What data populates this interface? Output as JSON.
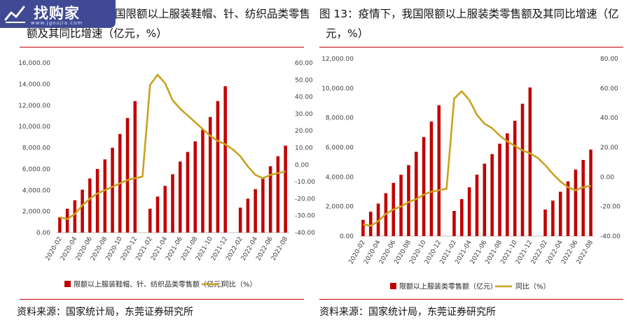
{
  "watermark": {
    "brand": "找购家",
    "sub": "www.jgoujia.com"
  },
  "left_title": {
    "line1": "国限额以上服装鞋帽、针、纺织品类零售",
    "line2": "额及其同比增速（亿元，%）"
  },
  "right_title": {
    "line1": "图 13：疫情下，我国限额以上服装类零售额及其同比增速（亿",
    "line2": "元，%）"
  },
  "left_source": "资料来源：国家统计局，东莞证券研究所",
  "right_source": "资料来源：国家统计局，东莞证券研究所",
  "colors": {
    "bar": "#c00000",
    "line": "#c9a21f",
    "rule": "#c00000"
  },
  "chart_data": [
    {
      "type": "bar",
      "title": "",
      "categories": [
        "2020-02",
        "2020-03",
        "2020-04",
        "2020-05",
        "2020-06",
        "2020-07",
        "2020-08",
        "2020-09",
        "2020-10",
        "2020-11",
        "2020-12",
        "2021-01",
        "2021-02",
        "2021-03",
        "2021-04",
        "2021-05",
        "2021-06",
        "2021-07",
        "2021-08",
        "2021-09",
        "2021-10",
        "2021-11",
        "2021-12",
        "2022-01",
        "2022-02",
        "2022-03",
        "2022-04",
        "2022-05",
        "2022-06",
        "2022-07",
        "2022-08"
      ],
      "x_tick_labels": [
        "2020-02",
        "2020-04",
        "2020-06",
        "2020-08",
        "2020-10",
        "2020-12",
        "2021-02",
        "2021-04",
        "2021-06",
        "2021-08",
        "2021-10",
        "2021-12",
        "2022-02",
        "2022-04",
        "2022-06",
        "2022-08"
      ],
      "series": [
        {
          "name": "限额以上服装鞋帽、针、纺织品类零售额（亿元）",
          "type": "bar",
          "axis": "left",
          "values": [
            1450,
            2250,
            3050,
            4050,
            5100,
            6000,
            6900,
            8000,
            9300,
            10800,
            12400,
            null,
            2250,
            3400,
            4400,
            5500,
            6700,
            7600,
            8600,
            9700,
            10900,
            12400,
            13800,
            null,
            2350,
            3200,
            4100,
            5200,
            6250,
            7200,
            8200
          ]
        },
        {
          "name": "同比（%）",
          "type": "line",
          "axis": "right",
          "values": [
            -31,
            -32,
            -29,
            -24,
            -20,
            -17,
            -15,
            -13,
            -11,
            -9,
            -8,
            -7,
            47,
            53,
            48,
            38,
            33,
            29,
            25,
            21,
            17,
            14,
            12,
            9,
            5,
            -1,
            -6,
            -8,
            -6,
            -5,
            -4
          ]
        }
      ],
      "ylim_left": [
        0,
        16000
      ],
      "yticks_left": [
        "0.00",
        "2,000.00",
        "4,000.00",
        "6,000.00",
        "8,000.00",
        "10,000.00",
        "12,000.00",
        "14,000.00",
        "16,000.00"
      ],
      "ylim_right": [
        -40,
        60
      ],
      "yticks_right": [
        "-40.00",
        "-30.00",
        "-20.00",
        "-10.00",
        "0.00",
        "10.00",
        "20.00",
        "30.00",
        "40.00",
        "50.00",
        "60.00"
      ],
      "legend_position": "bottom",
      "grid": false
    },
    {
      "type": "bar",
      "title": "",
      "categories": [
        "2020-02",
        "2020-03",
        "2020-04",
        "2020-05",
        "2020-06",
        "2020-07",
        "2020-08",
        "2020-09",
        "2020-10",
        "2020-11",
        "2020-12",
        "2021-01",
        "2021-02",
        "2021-03",
        "2021-04",
        "2021-05",
        "2021-06",
        "2021-07",
        "2021-08",
        "2021-09",
        "2021-10",
        "2021-11",
        "2021-12",
        "2022-01",
        "2022-02",
        "2022-03",
        "2022-04",
        "2022-05",
        "2022-06",
        "2022-07",
        "2022-08"
      ],
      "x_tick_labels": [
        "2020-02",
        "2020-04",
        "2020-06",
        "2020-08",
        "2020-10",
        "2020-12",
        "2021-02",
        "2021-04",
        "2021-06",
        "2021-08",
        "2021-10",
        "2021-12",
        "2022-02",
        "2022-04",
        "2022-06",
        "2022-08"
      ],
      "series": [
        {
          "name": "限额以上服装类零售额（亿元）",
          "type": "bar",
          "axis": "left",
          "values": [
            1100,
            1650,
            2200,
            2900,
            3600,
            4150,
            4800,
            5700,
            6700,
            7750,
            8850,
            null,
            1700,
            2500,
            3300,
            4150,
            4900,
            5550,
            6250,
            6950,
            7800,
            8950,
            10050,
            null,
            1800,
            2400,
            3000,
            3700,
            4500,
            5150,
            5850
          ]
        },
        {
          "name": "同比（%）",
          "type": "line",
          "axis": "right",
          "values": [
            -32,
            -33,
            -30,
            -25,
            -22,
            -20,
            -17,
            -15,
            -12,
            -10,
            -9,
            -8,
            53,
            58,
            52,
            42,
            36,
            33,
            28,
            24,
            21,
            18,
            16,
            13,
            8,
            2,
            -3,
            -7,
            -9,
            -7,
            -6
          ]
        }
      ],
      "ylim_left": [
        0,
        12000
      ],
      "yticks_left": [
        "0.00",
        "2,000.00",
        "4,000.00",
        "6,000.00",
        "8,000.00",
        "10,000.00",
        "12,000.00"
      ],
      "ylim_right": [
        -40,
        80
      ],
      "yticks_right": [
        "-40.00",
        "-20.00",
        "0.00",
        "20.00",
        "40.00",
        "60.00",
        "80.00"
      ],
      "legend_position": "bottom",
      "grid": false
    }
  ]
}
